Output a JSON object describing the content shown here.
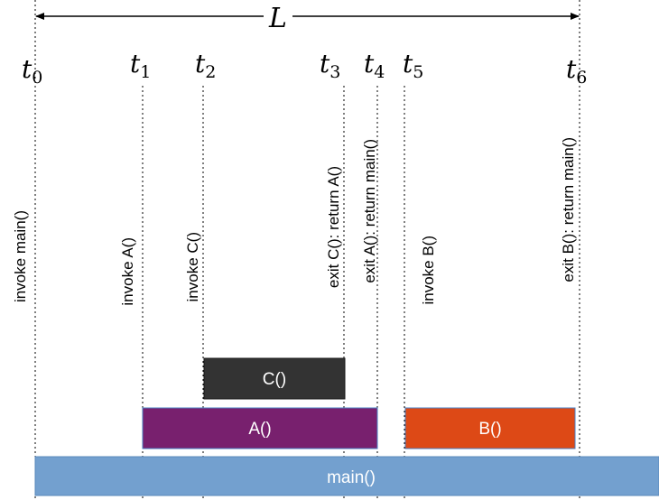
{
  "span_label": "L",
  "times": [
    {
      "base": "t",
      "sub": "0"
    },
    {
      "base": "t",
      "sub": "1"
    },
    {
      "base": "t",
      "sub": "2"
    },
    {
      "base": "t",
      "sub": "3"
    },
    {
      "base": "t",
      "sub": "4"
    },
    {
      "base": "t",
      "sub": "5"
    },
    {
      "base": "t",
      "sub": "6"
    }
  ],
  "events": [
    "invoke main()",
    "invoke A()",
    "invoke C()",
    "exit C(): return A()",
    "exit A(): return main()",
    "invoke B()",
    "exit B(): return main()"
  ],
  "bars": [
    {
      "label": "C()",
      "color": "#333333",
      "border": "#1a1a1a"
    },
    {
      "label": "A()",
      "color": "#78206e",
      "border": "#4a7ec0"
    },
    {
      "label": "B()",
      "color": "#dd4916",
      "border": "#4a7ec0"
    },
    {
      "label": "main()",
      "color": "#73a0cf",
      "border": "#5a88bb"
    }
  ]
}
